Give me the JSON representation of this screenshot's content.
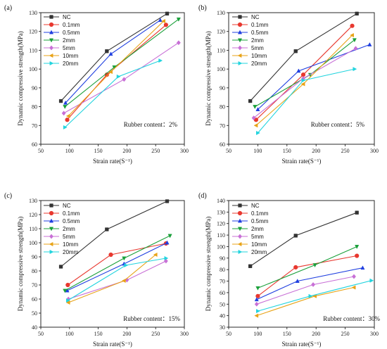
{
  "chart_data": [
    {
      "type": "line",
      "panel_label": "(a)",
      "xlabel": "Strain rate(S⁻¹)",
      "ylabel": "Dynamic compressive strength(MPa)",
      "xlim": [
        50,
        300
      ],
      "ylim": [
        60,
        130
      ],
      "xticks": [
        50,
        100,
        150,
        200,
        250,
        300
      ],
      "yticks": [
        60,
        70,
        80,
        90,
        100,
        110,
        120,
        130
      ],
      "annotation": "Rubber content：2%",
      "legend_position": "top-left",
      "series": [
        {
          "name": "NC",
          "color": "#333333",
          "marker": "square",
          "points": [
            [
              85,
              83
            ],
            [
              165,
              109.5
            ],
            [
              270,
              129.5
            ]
          ]
        },
        {
          "name": "0.1mm",
          "color": "#e8382f",
          "marker": "circle",
          "points": [
            [
              96,
              73
            ],
            [
              165,
              97
            ],
            [
              268,
              123.5
            ]
          ]
        },
        {
          "name": "0.5mm",
          "color": "#1f3fe0",
          "marker": "triangle-up",
          "points": [
            [
              93,
              82
            ],
            [
              172,
              108
            ],
            [
              258,
              126
            ]
          ]
        },
        {
          "name": "2mm",
          "color": "#1aa03a",
          "marker": "triangle-down",
          "points": [
            [
              92,
              80
            ],
            [
              178,
              101
            ],
            [
              290,
              126.5
            ]
          ]
        },
        {
          "name": "5mm",
          "color": "#c86fd6",
          "marker": "diamond",
          "points": [
            [
              90,
              76.5
            ],
            [
              195,
              94.5
            ],
            [
              290,
              114
            ]
          ]
        },
        {
          "name": "10mm",
          "color": "#e8a317",
          "marker": "triangle-left",
          "points": [
            [
              98,
              75
            ],
            [
              172,
              98.5
            ],
            [
              264,
              125.5
            ]
          ]
        },
        {
          "name": "20mm",
          "color": "#22d4de",
          "marker": "triangle-right",
          "points": [
            [
              92,
              69
            ],
            [
              185,
              96
            ],
            [
              258,
              104.5
            ]
          ]
        }
      ]
    },
    {
      "type": "line",
      "panel_label": "(b)",
      "xlabel": "Strain rate(S⁻¹)",
      "ylabel": "Dynamic compressive strength(MPa)",
      "xlim": [
        50,
        300
      ],
      "ylim": [
        60,
        130
      ],
      "xticks": [
        50,
        100,
        150,
        200,
        250,
        300
      ],
      "yticks": [
        60,
        70,
        80,
        90,
        100,
        110,
        120,
        130
      ],
      "annotation": "Rubber content：5%",
      "legend_position": "top-left",
      "series": [
        {
          "name": "NC",
          "color": "#333333",
          "marker": "square",
          "points": [
            [
              87,
              83
            ],
            [
              165,
              109.5
            ],
            [
              270,
              129.5
            ]
          ]
        },
        {
          "name": "0.1mm",
          "color": "#e8382f",
          "marker": "circle",
          "points": [
            [
              97,
              73
            ],
            [
              178,
              97
            ],
            [
              262,
              123
            ]
          ]
        },
        {
          "name": "0.5mm",
          "color": "#1f3fe0",
          "marker": "triangle-up",
          "points": [
            [
              100,
              78.5
            ],
            [
              170,
              99
            ],
            [
              292,
              113
            ]
          ]
        },
        {
          "name": "2mm",
          "color": "#1aa03a",
          "marker": "triangle-down",
          "points": [
            [
              95,
              80
            ],
            [
              190,
              97
            ],
            [
              266,
              115.5
            ]
          ]
        },
        {
          "name": "5mm",
          "color": "#c86fd6",
          "marker": "diamond",
          "points": [
            [
              93,
              74
            ],
            [
              178,
              95
            ],
            [
              268,
              111
            ]
          ]
        },
        {
          "name": "10mm",
          "color": "#e8a317",
          "marker": "triangle-left",
          "points": [
            [
              97,
              70
            ],
            [
              178,
              92
            ],
            [
              262,
              118
            ]
          ]
        },
        {
          "name": "20mm",
          "color": "#22d4de",
          "marker": "triangle-right",
          "points": [
            [
              100,
              66
            ],
            [
              178,
              94
            ],
            [
              266,
              100
            ]
          ]
        }
      ]
    },
    {
      "type": "line",
      "panel_label": "(c)",
      "xlabel": "Strain rate(S⁻¹)",
      "ylabel": "Dynamic compressive strength(MPa)",
      "xlim": [
        50,
        300
      ],
      "ylim": [
        40,
        130
      ],
      "xticks": [
        50,
        100,
        150,
        200,
        250,
        300
      ],
      "yticks": [
        40,
        50,
        60,
        70,
        80,
        90,
        100,
        110,
        120,
        130
      ],
      "annotation": "Rubber content：15%",
      "legend_position": "left",
      "series": [
        {
          "name": "NC",
          "color": "#333333",
          "marker": "square",
          "points": [
            [
              85,
              83
            ],
            [
              165,
              109.5
            ],
            [
              270,
              129.5
            ]
          ]
        },
        {
          "name": "0.1mm",
          "color": "#e8382f",
          "marker": "circle",
          "points": [
            [
              97,
              70
            ],
            [
              172,
              91.5
            ],
            [
              268,
              99.5
            ]
          ]
        },
        {
          "name": "0.5mm",
          "color": "#1f3fe0",
          "marker": "triangle-up",
          "points": [
            [
              96,
              66
            ],
            [
              195,
              85
            ],
            [
              270,
              100
            ]
          ]
        },
        {
          "name": "2mm",
          "color": "#1aa03a",
          "marker": "triangle-down",
          "points": [
            [
              92,
              66
            ],
            [
              195,
              89
            ],
            [
              275,
              105
            ]
          ]
        },
        {
          "name": "5mm",
          "color": "#c86fd6",
          "marker": "diamond",
          "points": [
            [
              98,
              60
            ],
            [
              200,
              73.5
            ],
            [
              268,
              87
            ]
          ]
        },
        {
          "name": "10mm",
          "color": "#e8a317",
          "marker": "triangle-left",
          "points": [
            [
              98,
              57.5
            ],
            [
              195,
              73
            ],
            [
              250,
              91.5
            ]
          ]
        },
        {
          "name": "20mm",
          "color": "#22d4de",
          "marker": "triangle-right",
          "points": [
            [
              97,
              59
            ],
            [
              198,
              84
            ],
            [
              268,
              89
            ]
          ]
        }
      ]
    },
    {
      "type": "line",
      "panel_label": "(d)",
      "xlabel": "Strain rate(S⁻¹)",
      "ylabel": "Dynamic compressive strength(MPa)",
      "xlim": [
        50,
        300
      ],
      "ylim": [
        30,
        140
      ],
      "xticks": [
        50,
        100,
        150,
        200,
        250,
        300
      ],
      "yticks": [
        30,
        40,
        50,
        60,
        70,
        80,
        90,
        100,
        110,
        120,
        130,
        140
      ],
      "annotation": "Rubber content：30%",
      "legend_position": "top-left",
      "series": [
        {
          "name": "NC",
          "color": "#333333",
          "marker": "square",
          "points": [
            [
              87,
              83
            ],
            [
              165,
              109.5
            ],
            [
              270,
              129.5
            ]
          ]
        },
        {
          "name": "0.1mm",
          "color": "#e8382f",
          "marker": "circle",
          "points": [
            [
              100,
              57
            ],
            [
              165,
              82
            ],
            [
              270,
              92
            ]
          ]
        },
        {
          "name": "0.5mm",
          "color": "#1f3fe0",
          "marker": "triangle-up",
          "points": [
            [
              98,
              54
            ],
            [
              168,
              70
            ],
            [
              280,
              81.5
            ]
          ]
        },
        {
          "name": "2mm",
          "color": "#1aa03a",
          "marker": "triangle-down",
          "points": [
            [
              100,
              64
            ],
            [
              198,
              84
            ],
            [
              270,
              100
            ]
          ]
        },
        {
          "name": "5mm",
          "color": "#c86fd6",
          "marker": "diamond",
          "points": [
            [
              98,
              50
            ],
            [
              195,
              67
            ],
            [
              265,
              74
            ]
          ]
        },
        {
          "name": "10mm",
          "color": "#e8a317",
          "marker": "triangle-left",
          "points": [
            [
              98,
              40
            ],
            [
              198,
              57
            ],
            [
              265,
              64.5
            ]
          ]
        },
        {
          "name": "20mm",
          "color": "#22d4de",
          "marker": "triangle-right",
          "points": [
            [
              100,
              44
            ],
            [
              190,
              57
            ],
            [
              295,
              70.5
            ]
          ]
        }
      ]
    }
  ]
}
